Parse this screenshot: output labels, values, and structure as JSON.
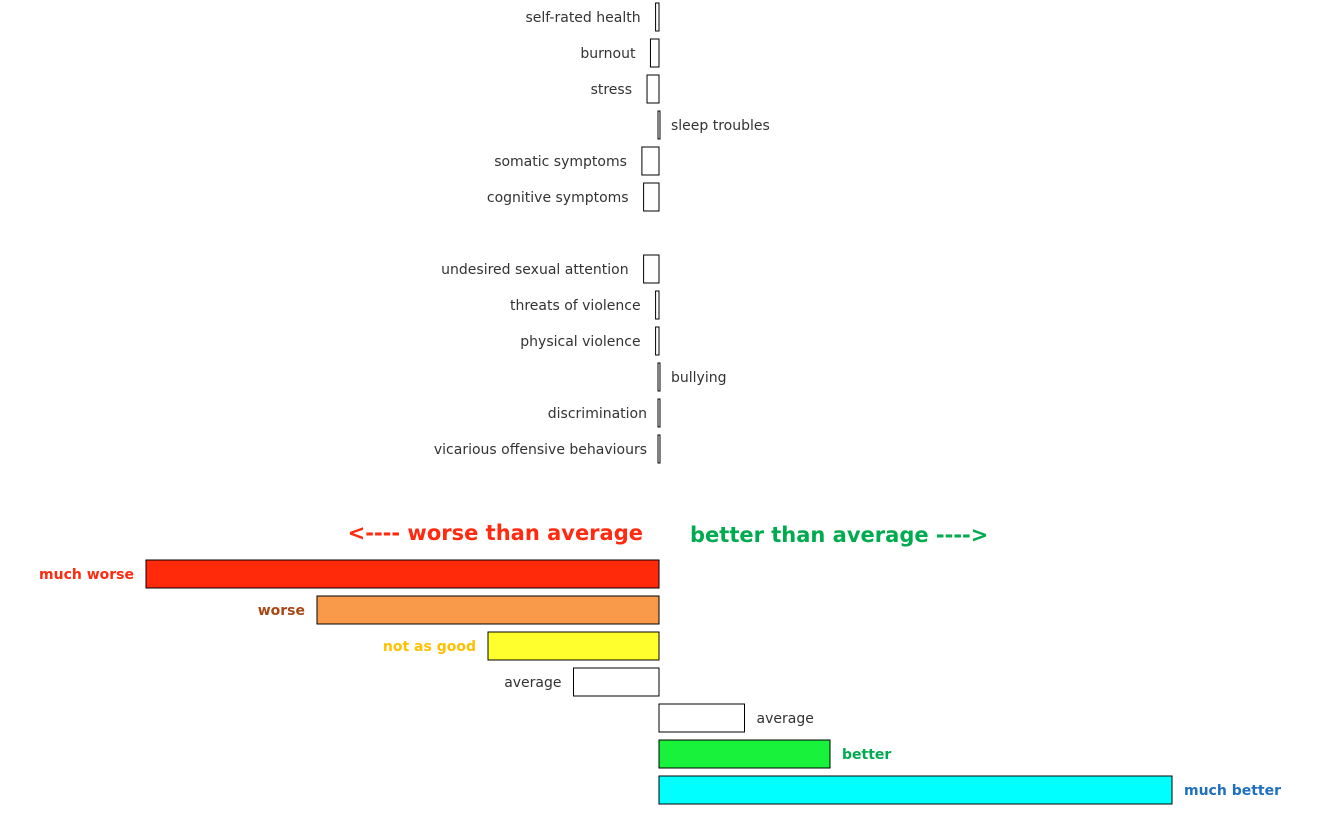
{
  "chart_data": [
    {
      "type": "bar",
      "orientation": "horizontal",
      "baseline": 0,
      "xlim": [
        -3,
        3
      ],
      "groups": [
        {
          "categories": [
            "self-rated health",
            "burnout",
            "stress",
            "sleep troubles",
            "somatic symptoms",
            "cognitive symptoms"
          ],
          "values": [
            -0.02,
            -0.05,
            -0.07,
            0.0,
            -0.1,
            -0.09
          ]
        },
        {
          "categories": [
            "undesired sexual attention",
            "threats of violence",
            "physical violence",
            "bullying",
            "discrimination",
            "vicarious offensive behaviours"
          ],
          "values": [
            -0.09,
            -0.02,
            -0.02,
            0.0,
            0.0,
            0.0
          ]
        }
      ]
    },
    {
      "type": "bar",
      "orientation": "horizontal",
      "role": "legend",
      "baseline": 0,
      "xlim": [
        -3,
        3
      ],
      "left_direction_label": "<---- worse than average",
      "right_direction_label": "better than average ---->",
      "left_direction_color": "#FF2A10",
      "right_direction_color": "#00AA4F",
      "categories": [
        "much worse",
        "worse",
        "not as good",
        "average",
        "average",
        "better",
        "much better"
      ],
      "values": [
        -3,
        -2,
        -1,
        -0.5,
        0.5,
        1,
        3
      ],
      "fill_colors": [
        "#FF2A0A",
        "#F9994A",
        "#FFFF2E",
        "#FFFFFF",
        "#FFFFFF",
        "#18F23A",
        "#00FFFF"
      ],
      "label_colors": [
        "#FF2A10",
        "#A84814",
        "#FFC000",
        "#333333",
        "#333333",
        "#00AA4F",
        "#1F6FBF"
      ]
    }
  ]
}
